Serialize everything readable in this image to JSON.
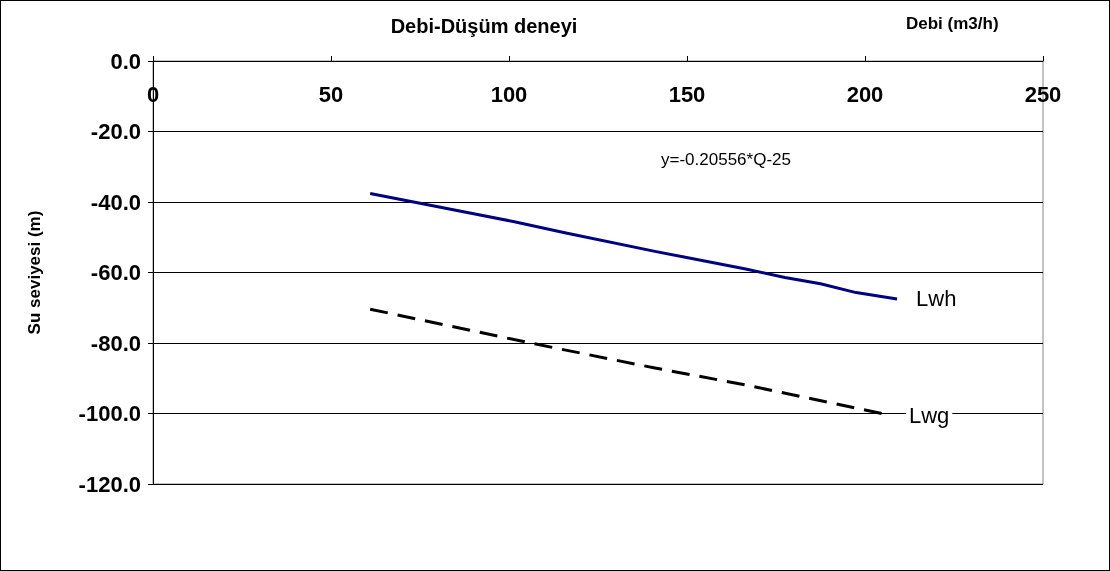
{
  "chart_data": {
    "type": "line",
    "title": "Debi-Düşüm deneyi",
    "xlabel": "Debi (m3/h)",
    "ylabel": "Su seviyesi (m)",
    "annotations": [
      "y=-0.20556*Q-25"
    ],
    "xlim": [
      0,
      250
    ],
    "xticks": [
      0,
      50,
      100,
      150,
      200,
      250
    ],
    "ylim": [
      -120,
      0
    ],
    "yticks": [
      {
        "value": 0,
        "label": "0.0"
      },
      {
        "value": -20,
        "label": "-20.0"
      },
      {
        "value": -40,
        "label": "-40.0"
      },
      {
        "value": -60,
        "label": "-60.0"
      },
      {
        "value": -80,
        "label": "-80.0"
      },
      {
        "value": -100,
        "label": "-100.0"
      },
      {
        "value": -120,
        "label": "-120.0"
      }
    ],
    "grid": "y",
    "marker": "none",
    "legend": false,
    "series": [
      {
        "name": "Lwh",
        "color": "#000080",
        "line_style": "solid",
        "x": [
          61,
          89,
          101.5,
          116,
          141,
          166.5,
          177.5,
          187.5,
          197.5,
          209
        ],
        "values": [
          -37.6,
          -43.1,
          -45.6,
          -48.8,
          -54,
          -59,
          -61.4,
          -63.2,
          -65.7,
          -67.5
        ]
      },
      {
        "name": "Lwg",
        "color": "#000000",
        "line_style": "dashed",
        "x": [
          61,
          106,
          141,
          166.5,
          207
        ],
        "values": [
          -70.4,
          -80,
          -87.1,
          -91.9,
          -100.5
        ]
      }
    ]
  }
}
